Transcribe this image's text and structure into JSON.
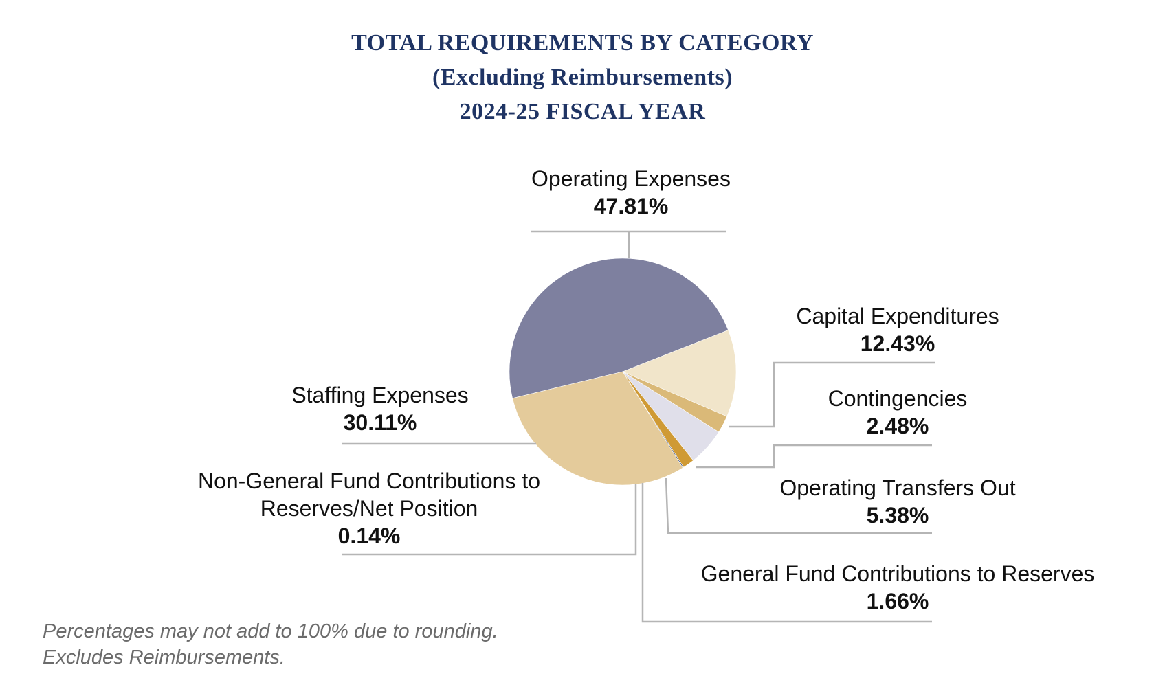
{
  "title": {
    "line1": "TOTAL REQUIREMENTS BY CATEGORY",
    "line2": "(Excluding Reimbursements)",
    "line3": "2024-25 FISCAL YEAR"
  },
  "chart_data": {
    "type": "pie",
    "title": "TOTAL REQUIREMENTS BY CATEGORY (Excluding Reimbursements) 2024-25 FISCAL YEAR",
    "slices": [
      {
        "name": "Operating Expenses",
        "label_lines": [
          "Operating Expenses"
        ],
        "value": 47.81,
        "display": "47.81%",
        "color": "#7e809f"
      },
      {
        "name": "Capital Expenditures",
        "label_lines": [
          "Capital Expenditures"
        ],
        "value": 12.43,
        "display": "12.43%",
        "color": "#f1e5ca"
      },
      {
        "name": "Contingencies",
        "label_lines": [
          "Contingencies"
        ],
        "value": 2.48,
        "display": "2.48%",
        "color": "#dab978"
      },
      {
        "name": "Operating Transfers Out",
        "label_lines": [
          "Operating Transfers Out"
        ],
        "value": 5.38,
        "display": "5.38%",
        "color": "#e0dfea"
      },
      {
        "name": "General Fund Contributions to Reserves",
        "label_lines": [
          "General Fund Contributions to Reserves"
        ],
        "value": 1.66,
        "display": "1.66%",
        "color": "#cf9a35"
      },
      {
        "name": "Non-General Fund Contributions to Reserves/Net Position",
        "label_lines": [
          "Non-General Fund Contributions to",
          "Reserves/Net Position"
        ],
        "value": 0.14,
        "display": "0.14%",
        "color": "#1f3464"
      },
      {
        "name": "Staffing Expenses",
        "label_lines": [
          "Staffing Expenses"
        ],
        "value": 30.11,
        "display": "30.11%",
        "color": "#e4cb9b"
      }
    ],
    "start_category": "Staffing Expenses boundary at upper-left, clockwise",
    "leader_line_color": "#b5b5b5"
  },
  "notes": {
    "line1": "Percentages may not add to 100% due to rounding.",
    "line2": "Excludes Reimbursements."
  }
}
